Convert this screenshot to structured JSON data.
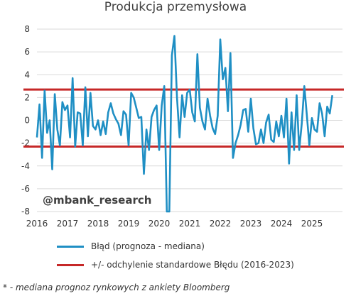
{
  "chart_data": {
    "type": "line",
    "title": "Produkcja przemysłowa",
    "xlabel": "",
    "ylabel": "",
    "x_ticks": [
      "2016",
      "2017",
      "2018",
      "2019",
      "2020",
      "2021",
      "2022",
      "2023",
      "2024",
      "2025"
    ],
    "y_ticks": [
      "8",
      "6",
      "4",
      "2",
      "0",
      "-2",
      "-4",
      "-6",
      "-8"
    ],
    "ylim": [
      -8,
      8
    ],
    "xlim": [
      "2016-01",
      "2025-12"
    ],
    "grid": "horizontal",
    "watermark": "@mbank_research",
    "series": [
      {
        "name": "Błąd (prognoza - mediana)",
        "color": "#1f8fc4",
        "x_start": "2016-01",
        "frequency": "monthly",
        "values": [
          -1.5,
          1.4,
          -3.3,
          2.6,
          -1.1,
          0.0,
          -4.3,
          2.3,
          -0.8,
          -2.2,
          1.6,
          0.9,
          1.3,
          -1.5,
          3.7,
          -2.3,
          0.7,
          0.6,
          -2.2,
          2.9,
          -1.4,
          2.4,
          -0.5,
          -0.8,
          0.0,
          -1.3,
          -0.1,
          -1.2,
          0.7,
          1.5,
          0.6,
          0.1,
          -0.3,
          -1.3,
          0.8,
          0.5,
          -2.2,
          2.4,
          2.0,
          1.1,
          0.2,
          0.3,
          -4.7,
          -0.8,
          -2.6,
          0.3,
          0.9,
          1.3,
          -2.6,
          1.3,
          3.0,
          -8.0,
          -8.0,
          5.7,
          7.4,
          2.0,
          -1.5,
          2.2,
          0.3,
          2.4,
          2.7,
          0.7,
          -0.1,
          5.8,
          1.1,
          -0.1,
          -0.8,
          1.9,
          0.4,
          -0.7,
          -1.2,
          0.4,
          7.1,
          3.6,
          4.6,
          0.8,
          5.9,
          -3.3,
          -2.0,
          -1.3,
          -0.4,
          0.9,
          1.0,
          -1.0,
          1.9,
          -0.7,
          -2.1,
          -2.0,
          -0.8,
          -2.0,
          -0.2,
          0.5,
          -1.7,
          -1.9,
          -0.1,
          -1.4,
          0.4,
          -1.5,
          1.9,
          -3.8,
          0.7,
          -2.6,
          2.2,
          -2.6,
          -0.3,
          3.0,
          0.5,
          -2.2,
          0.2,
          -0.8,
          -1.0,
          1.5,
          0.6,
          -1.4,
          1.2,
          0.6,
          2.2
        ]
      },
      {
        "name": "+/- odchylenie standardowe Błędu (2016-2023)",
        "color": "#c62828",
        "values": [
          2.7,
          -2.3
        ]
      }
    ],
    "legend_position": "bottom"
  },
  "footnote": "* - mediana prognoz rynkowych z ankiety Bloomberg"
}
